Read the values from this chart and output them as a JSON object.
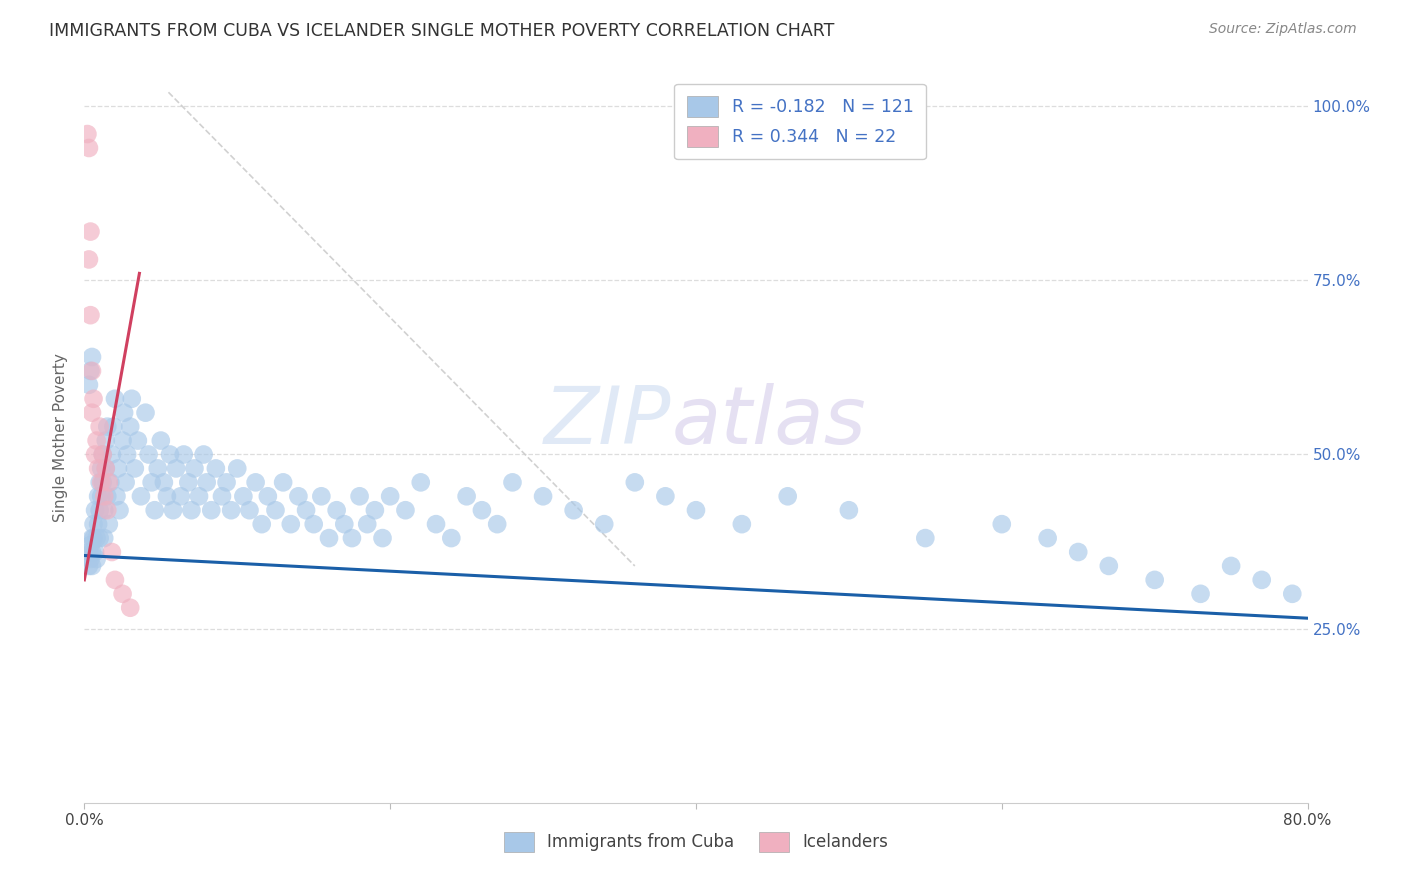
{
  "title": "IMMIGRANTS FROM CUBA VS ICELANDER SINGLE MOTHER POVERTY CORRELATION CHART",
  "source": "Source: ZipAtlas.com",
  "ylabel": "Single Mother Poverty",
  "legend_label1": "Immigrants from Cuba",
  "legend_label2": "Icelanders",
  "r1": "-0.182",
  "n1": "121",
  "r2": "0.344",
  "n2": "22",
  "color_blue": "#a8c8e8",
  "color_pink": "#f0b0c0",
  "line_blue": "#1a5fa8",
  "line_pink": "#d04060",
  "line_gray": "#cccccc",
  "background": "#ffffff",
  "xlim": [
    0.0,
    0.8
  ],
  "ylim": [
    0.0,
    1.05
  ],
  "cuba_line_x0": 0.0,
  "cuba_line_y0": 0.355,
  "cuba_line_x1": 0.8,
  "cuba_line_y1": 0.265,
  "iceland_line_x0": 0.0,
  "iceland_line_y0": 0.32,
  "iceland_line_x1": 0.036,
  "iceland_line_y1": 0.76,
  "gray_line_x0": 0.055,
  "gray_line_y0": 1.02,
  "gray_line_x1": 0.36,
  "gray_line_y1": 0.34,
  "cuba_x": [
    0.003,
    0.003,
    0.004,
    0.004,
    0.005,
    0.005,
    0.005,
    0.006,
    0.006,
    0.007,
    0.007,
    0.008,
    0.008,
    0.009,
    0.009,
    0.01,
    0.01,
    0.01,
    0.011,
    0.011,
    0.012,
    0.012,
    0.013,
    0.013,
    0.014,
    0.014,
    0.015,
    0.015,
    0.016,
    0.017,
    0.018,
    0.019,
    0.02,
    0.021,
    0.022,
    0.023,
    0.025,
    0.026,
    0.027,
    0.028,
    0.03,
    0.031,
    0.033,
    0.035,
    0.037,
    0.04,
    0.042,
    0.044,
    0.046,
    0.048,
    0.05,
    0.052,
    0.054,
    0.056,
    0.058,
    0.06,
    0.063,
    0.065,
    0.068,
    0.07,
    0.072,
    0.075,
    0.078,
    0.08,
    0.083,
    0.086,
    0.09,
    0.093,
    0.096,
    0.1,
    0.104,
    0.108,
    0.112,
    0.116,
    0.12,
    0.125,
    0.13,
    0.135,
    0.14,
    0.145,
    0.15,
    0.155,
    0.16,
    0.165,
    0.17,
    0.175,
    0.18,
    0.185,
    0.19,
    0.195,
    0.2,
    0.21,
    0.22,
    0.23,
    0.24,
    0.25,
    0.26,
    0.27,
    0.28,
    0.3,
    0.32,
    0.34,
    0.36,
    0.38,
    0.4,
    0.43,
    0.46,
    0.5,
    0.55,
    0.6,
    0.63,
    0.65,
    0.67,
    0.7,
    0.73,
    0.75,
    0.77,
    0.79,
    0.003,
    0.004,
    0.005
  ],
  "cuba_y": [
    0.36,
    0.34,
    0.37,
    0.35,
    0.38,
    0.36,
    0.34,
    0.4,
    0.38,
    0.36,
    0.42,
    0.38,
    0.35,
    0.44,
    0.4,
    0.46,
    0.42,
    0.38,
    0.48,
    0.44,
    0.5,
    0.46,
    0.42,
    0.38,
    0.52,
    0.48,
    0.54,
    0.44,
    0.4,
    0.46,
    0.5,
    0.54,
    0.58,
    0.44,
    0.48,
    0.42,
    0.52,
    0.56,
    0.46,
    0.5,
    0.54,
    0.58,
    0.48,
    0.52,
    0.44,
    0.56,
    0.5,
    0.46,
    0.42,
    0.48,
    0.52,
    0.46,
    0.44,
    0.5,
    0.42,
    0.48,
    0.44,
    0.5,
    0.46,
    0.42,
    0.48,
    0.44,
    0.5,
    0.46,
    0.42,
    0.48,
    0.44,
    0.46,
    0.42,
    0.48,
    0.44,
    0.42,
    0.46,
    0.4,
    0.44,
    0.42,
    0.46,
    0.4,
    0.44,
    0.42,
    0.4,
    0.44,
    0.38,
    0.42,
    0.4,
    0.38,
    0.44,
    0.4,
    0.42,
    0.38,
    0.44,
    0.42,
    0.46,
    0.4,
    0.38,
    0.44,
    0.42,
    0.4,
    0.46,
    0.44,
    0.42,
    0.4,
    0.46,
    0.44,
    0.42,
    0.4,
    0.44,
    0.42,
    0.38,
    0.4,
    0.38,
    0.36,
    0.34,
    0.32,
    0.3,
    0.34,
    0.32,
    0.3,
    0.6,
    0.62,
    0.64
  ],
  "iceland_x": [
    0.002,
    0.003,
    0.003,
    0.004,
    0.004,
    0.005,
    0.005,
    0.006,
    0.007,
    0.008,
    0.009,
    0.01,
    0.011,
    0.012,
    0.013,
    0.014,
    0.015,
    0.016,
    0.018,
    0.02,
    0.025,
    0.03
  ],
  "iceland_y": [
    0.96,
    0.94,
    0.78,
    0.82,
    0.7,
    0.62,
    0.56,
    0.58,
    0.5,
    0.52,
    0.48,
    0.54,
    0.46,
    0.5,
    0.44,
    0.48,
    0.42,
    0.46,
    0.36,
    0.32,
    0.3,
    0.28
  ]
}
